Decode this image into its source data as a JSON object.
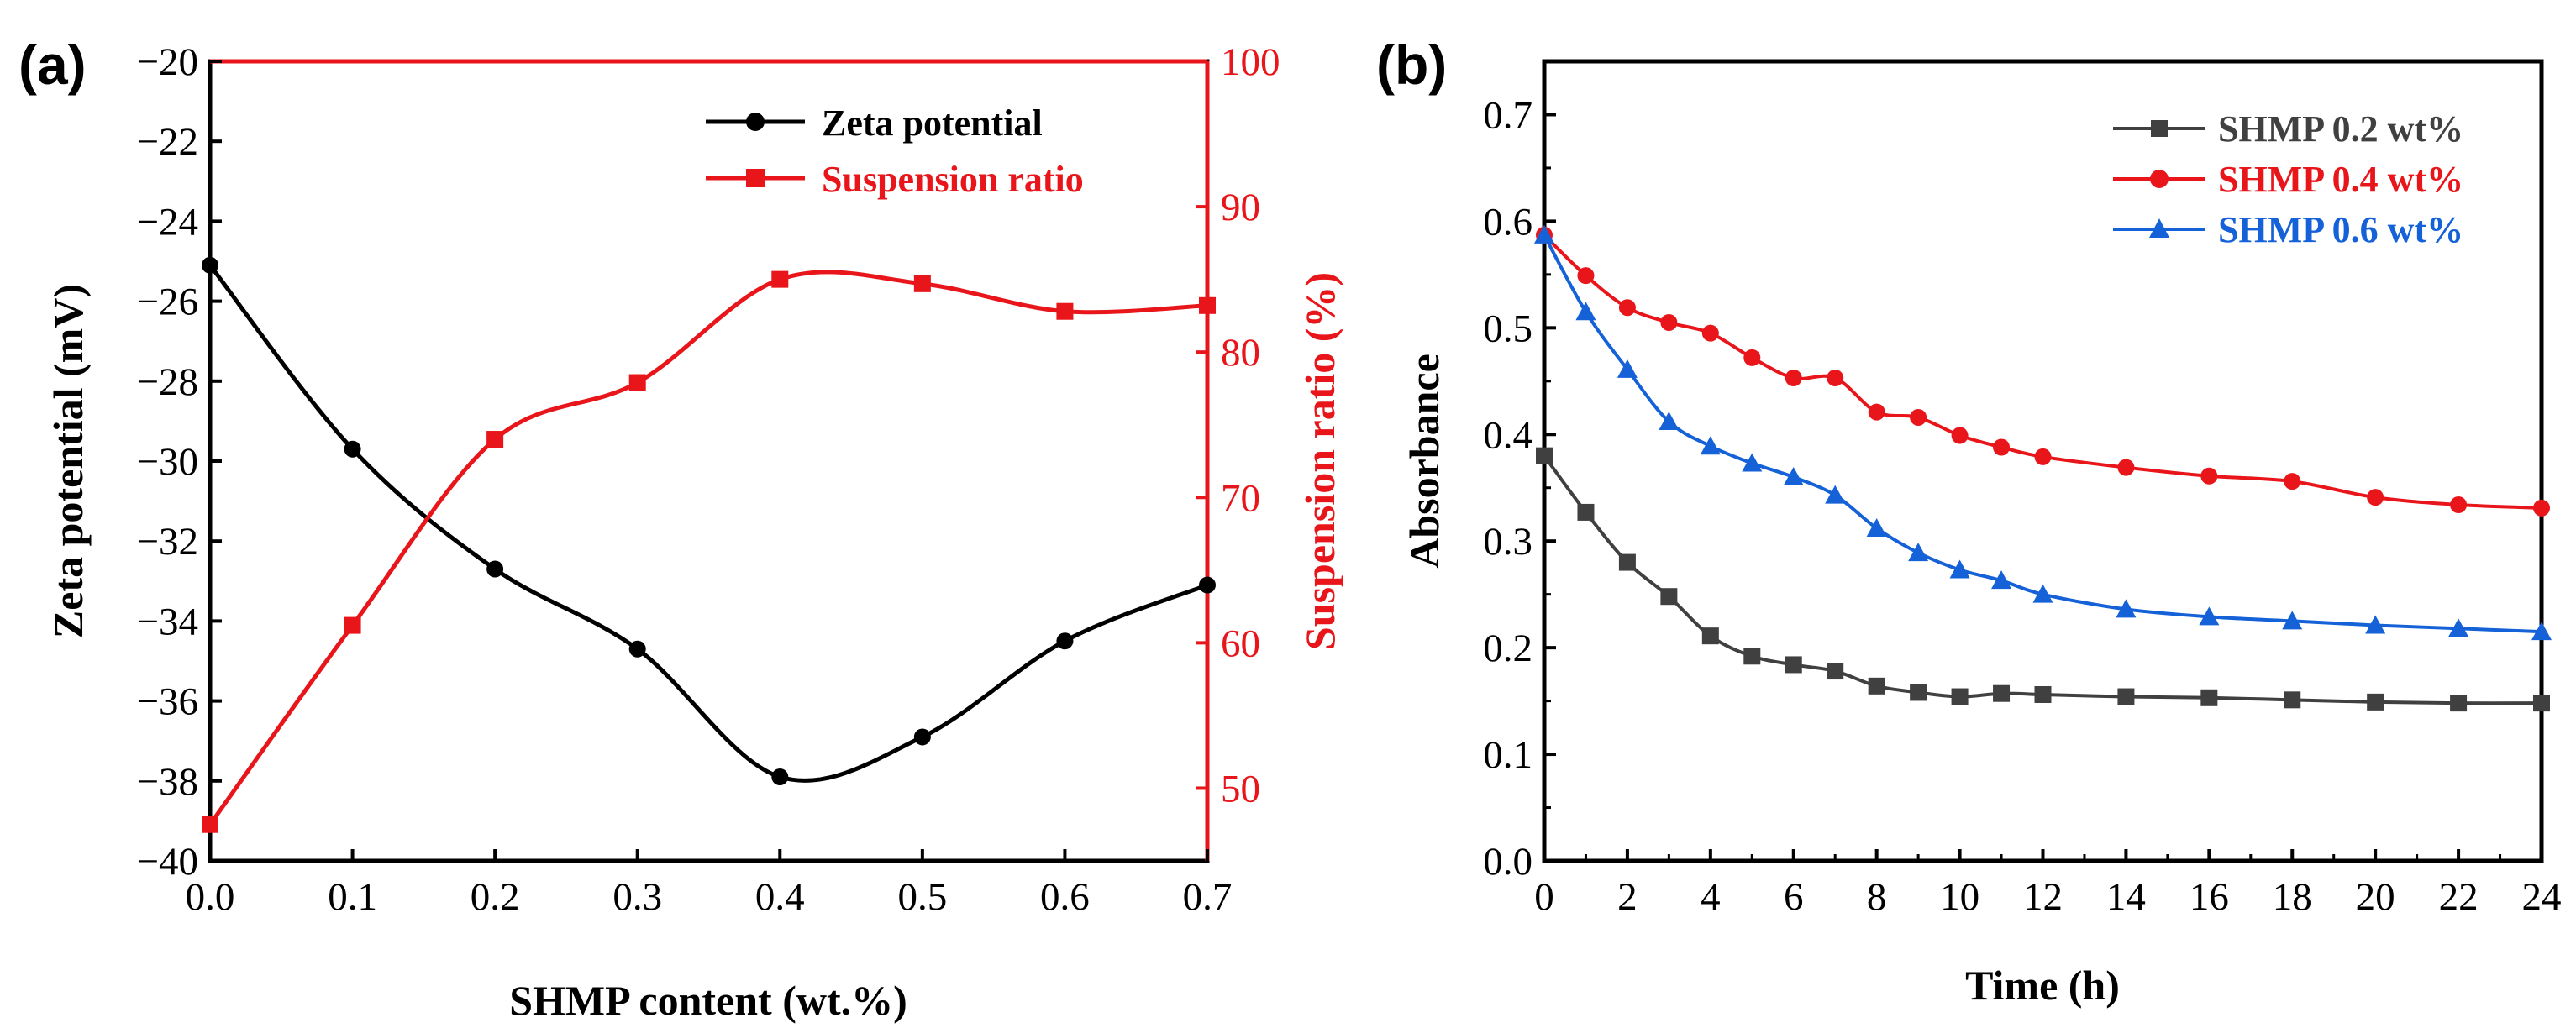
{
  "chart_data": [
    {
      "panel": "(a)",
      "type": "line",
      "xlabel": "SHMP content (wt.%)",
      "ylabel": "Zeta potential (mV)",
      "y2label": "Suspension ratio (%)",
      "xlim": [
        0.0,
        0.7
      ],
      "ylim": [
        -40,
        -20
      ],
      "y2lim": [
        45,
        100
      ],
      "x_ticks": [
        "0.0",
        "0.1",
        "0.2",
        "0.3",
        "0.4",
        "0.5",
        "0.6",
        "0.7"
      ],
      "y_ticks": [
        "-40",
        "-38",
        "-36",
        "-34",
        "-32",
        "-30",
        "-28",
        "-26",
        "-24",
        "-22",
        "-20"
      ],
      "y2_ticks": [
        "50",
        "60",
        "70",
        "80",
        "90",
        "100"
      ],
      "series": [
        {
          "name": "Zeta potential",
          "axis": "left",
          "color": "#000000",
          "marker": "circle",
          "x": [
            0.0,
            0.1,
            0.2,
            0.3,
            0.4,
            0.5,
            0.6,
            0.7
          ],
          "values": [
            -25.1,
            -29.7,
            -32.7,
            -34.7,
            -37.9,
            -36.9,
            -34.5,
            -33.1
          ]
        },
        {
          "name": "Suspension ratio",
          "axis": "right",
          "color": "#e8161b",
          "marker": "square",
          "x": [
            0.0,
            0.1,
            0.2,
            0.3,
            0.4,
            0.5,
            0.6,
            0.7
          ],
          "values": [
            47.5,
            61.2,
            74.0,
            77.9,
            85.0,
            84.7,
            82.8,
            83.2
          ]
        }
      ],
      "legend": "top-right"
    },
    {
      "panel": "(b)",
      "type": "line",
      "xlabel": "Time (h)",
      "ylabel": "Absorbance",
      "xlim": [
        0,
        24
      ],
      "ylim": [
        0.0,
        0.75
      ],
      "x_ticks": [
        "0",
        "2",
        "4",
        "6",
        "8",
        "10",
        "12",
        "14",
        "16",
        "18",
        "20",
        "22",
        "24"
      ],
      "y_ticks": [
        "0.0",
        "0.1",
        "0.2",
        "0.3",
        "0.4",
        "0.5",
        "0.6",
        "0.7"
      ],
      "series": [
        {
          "name": "SHMP 0.2 wt%",
          "color": "#404040",
          "marker": "square",
          "x": [
            0,
            1,
            2,
            3,
            4,
            5,
            6,
            7,
            8,
            9,
            10,
            11,
            12,
            14,
            16,
            18,
            20,
            22,
            24
          ],
          "values": [
            0.38,
            0.327,
            0.28,
            0.248,
            0.211,
            0.192,
            0.184,
            0.178,
            0.164,
            0.158,
            0.154,
            0.157,
            0.156,
            0.154,
            0.153,
            0.151,
            0.149,
            0.148,
            0.148
          ]
        },
        {
          "name": "SHMP 0.4 wt%",
          "color": "#e8161b",
          "marker": "circle",
          "x": [
            0,
            1,
            2,
            3,
            4,
            5,
            6,
            7,
            8,
            9,
            10,
            11,
            12,
            14,
            16,
            18,
            20,
            22,
            24
          ],
          "values": [
            0.587,
            0.549,
            0.519,
            0.505,
            0.495,
            0.472,
            0.453,
            0.453,
            0.421,
            0.416,
            0.399,
            0.388,
            0.379,
            0.369,
            0.361,
            0.356,
            0.341,
            0.334,
            0.331
          ]
        },
        {
          "name": "SHMP 0.6 wt%",
          "color": "#1461d8",
          "marker": "triangle",
          "x": [
            0,
            1,
            2,
            3,
            4,
            5,
            6,
            7,
            8,
            9,
            10,
            11,
            12,
            14,
            16,
            18,
            20,
            22,
            24
          ],
          "values": [
            0.587,
            0.515,
            0.461,
            0.412,
            0.389,
            0.373,
            0.36,
            0.343,
            0.312,
            0.289,
            0.273,
            0.263,
            0.25,
            0.236,
            0.229,
            0.225,
            0.221,
            0.218,
            0.215
          ]
        }
      ],
      "legend": "top-right"
    }
  ]
}
